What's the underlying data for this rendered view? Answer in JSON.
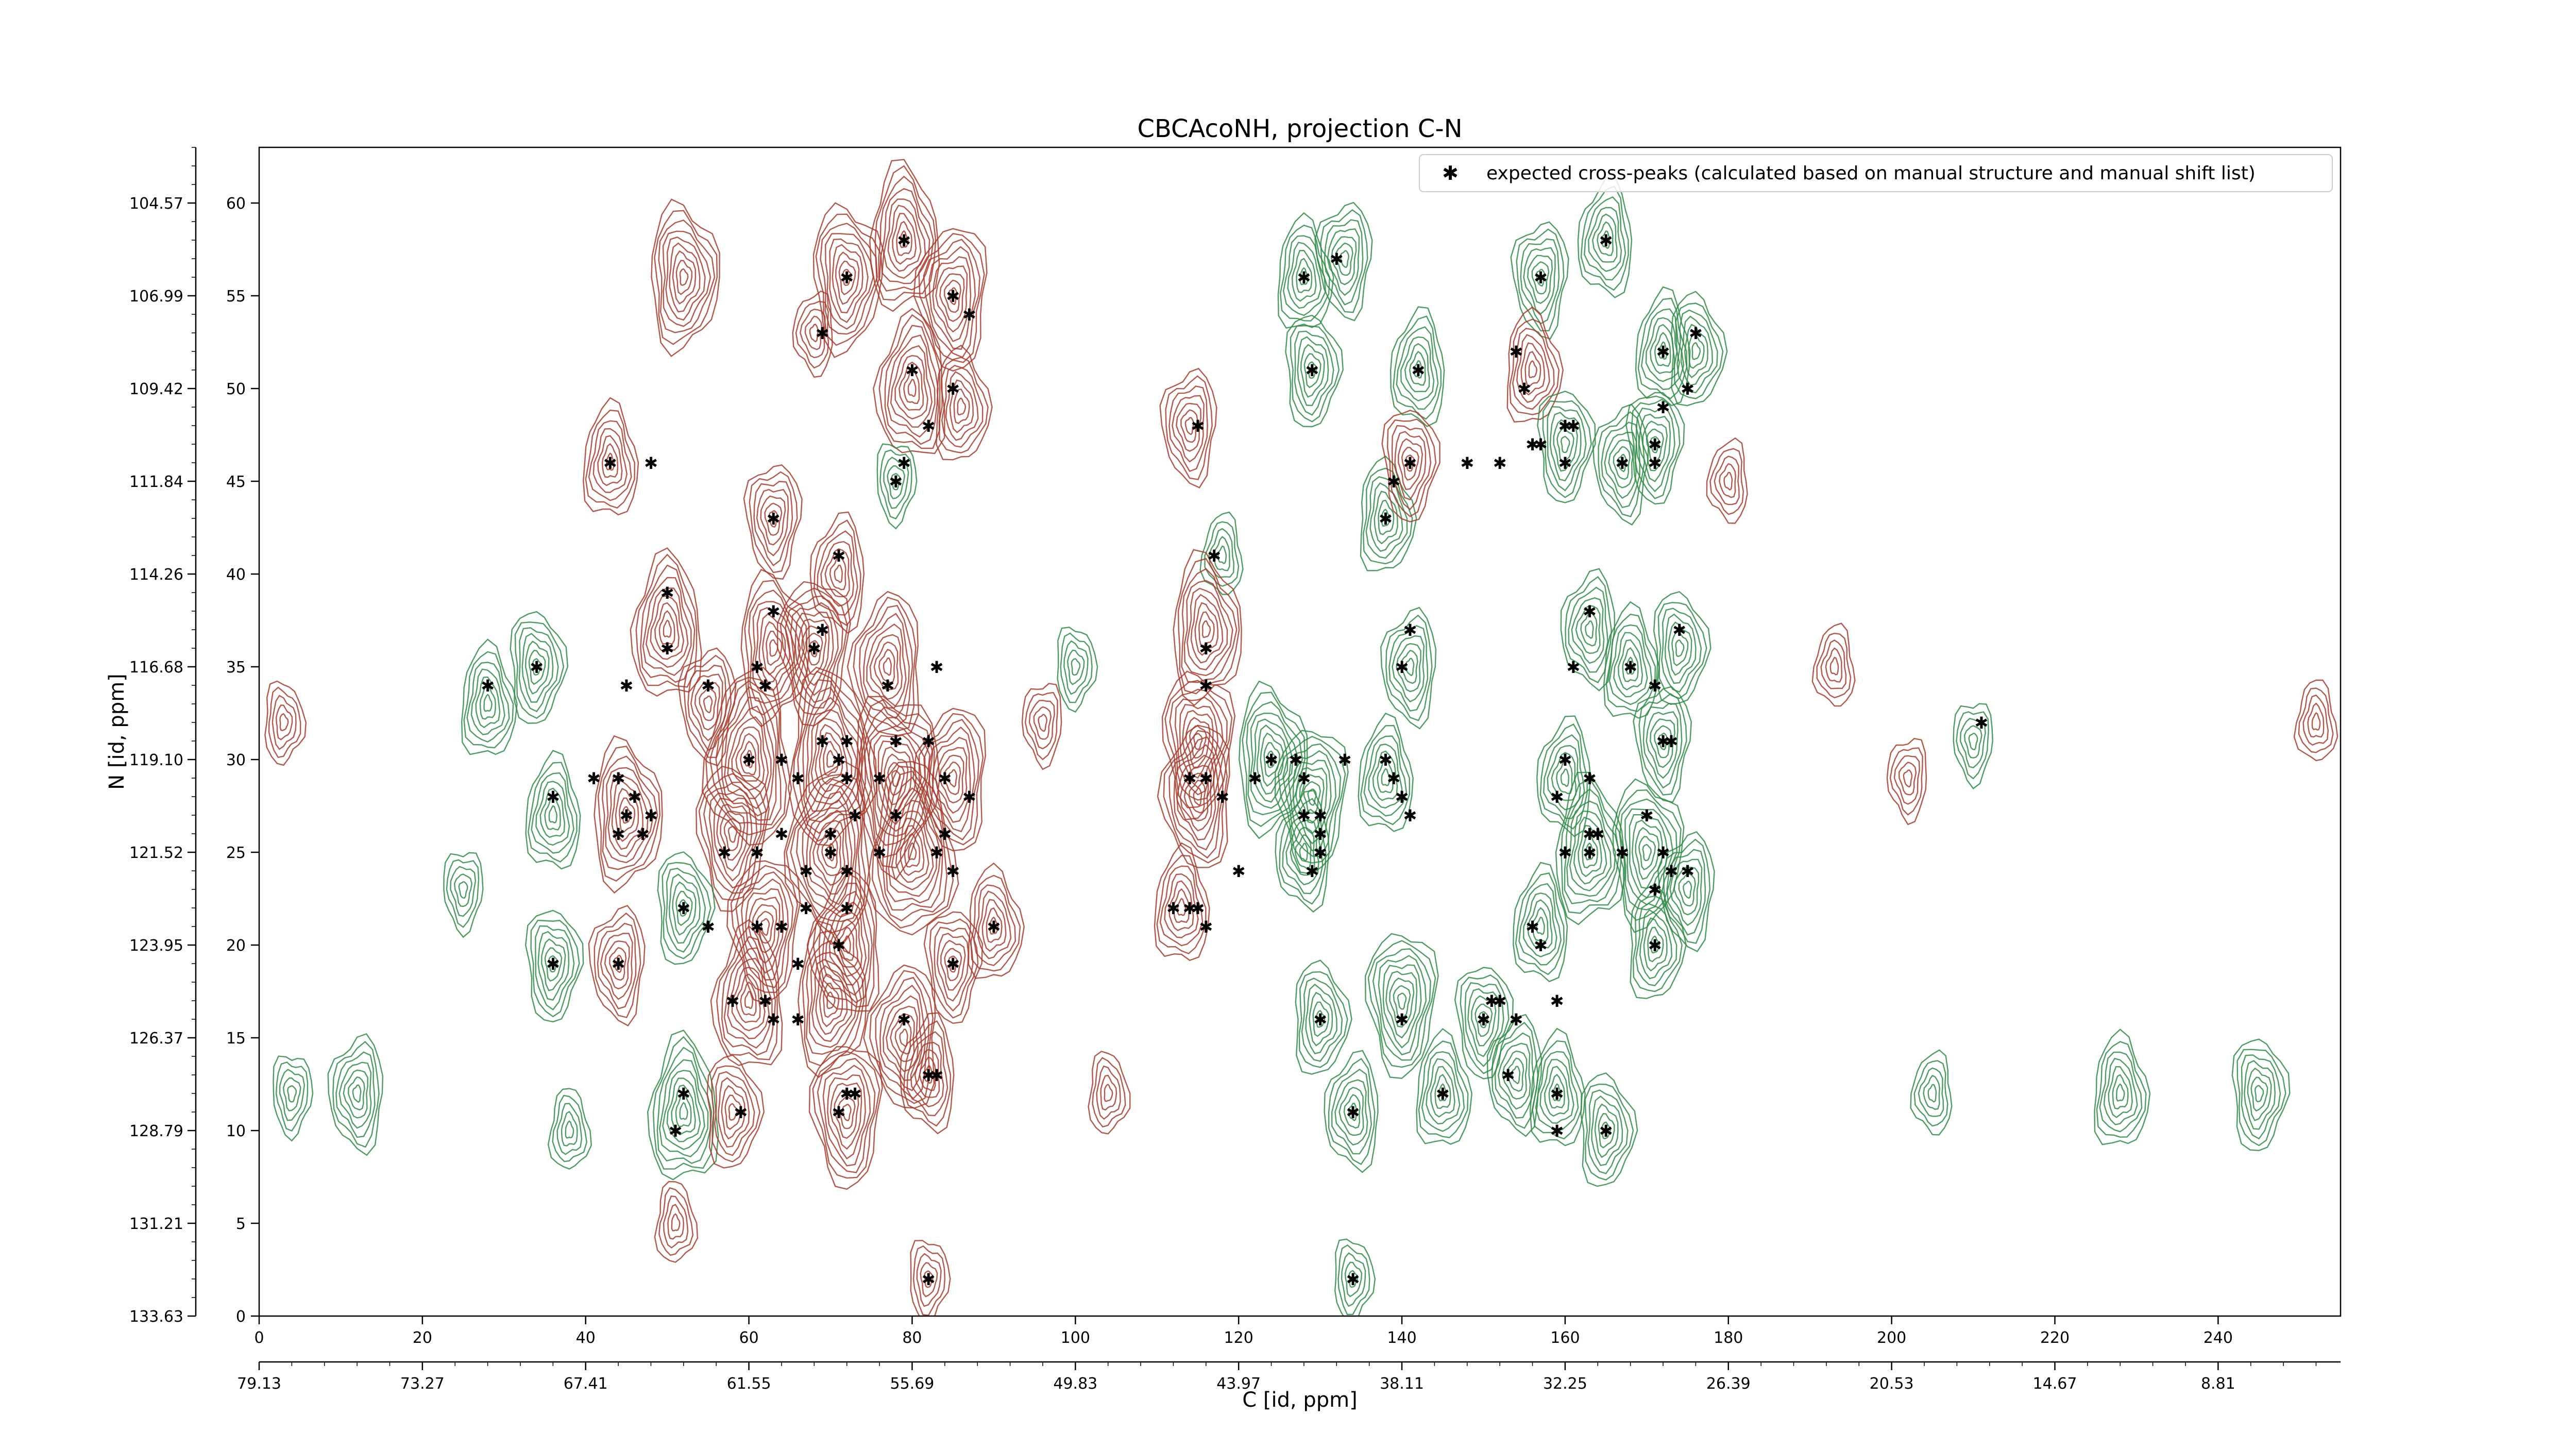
{
  "chart_data": {
    "type": "contour",
    "title": "CBCAcoNH, projection C-N",
    "xlabel": "C [id, ppm]",
    "ylabel": "N [id, ppm]",
    "xlim": [
      0,
      255
    ],
    "ylim": [
      0,
      63
    ],
    "x_ticks": [
      0,
      20,
      40,
      60,
      80,
      100,
      120,
      140,
      160,
      180,
      200,
      220,
      240
    ],
    "x_ticks_labels": [
      "0",
      "20",
      "40",
      "60",
      "80",
      "100",
      "120",
      "140",
      "160",
      "180",
      "200",
      "220",
      "240"
    ],
    "x_ppm_tick_positions": [
      0,
      20,
      40,
      60,
      80,
      100,
      120,
      140,
      160,
      180,
      200,
      220,
      240
    ],
    "x_ppm_ticks_labels": [
      "79.13",
      "73.27",
      "67.41",
      "61.55",
      "55.69",
      "49.83",
      "43.97",
      "38.11",
      "32.25",
      "26.39",
      "20.53",
      "14.67",
      "8.81"
    ],
    "y_ticks": [
      0,
      5,
      10,
      15,
      20,
      25,
      30,
      35,
      40,
      45,
      50,
      55,
      60
    ],
    "y_ticks_labels": [
      "0",
      "5",
      "10",
      "15",
      "20",
      "25",
      "30",
      "35",
      "40",
      "45",
      "50",
      "55",
      "60"
    ],
    "y_ppm_tick_positions": [
      0,
      5,
      10,
      15,
      20,
      25,
      30,
      35,
      40,
      45,
      50,
      55,
      60
    ],
    "y_ppm_ticks_labels": [
      "133.63",
      "131.21",
      "128.79",
      "126.37",
      "123.95",
      "121.52",
      "119.10",
      "116.68",
      "114.26",
      "111.84",
      "109.42",
      "106.99",
      "104.57"
    ],
    "legend": {
      "position": "top-right",
      "label": "expected cross-peaks (calculated based on manual structure and manual shift list)"
    },
    "colors": {
      "positive_contours": "#a83a2c",
      "negative_contours": "#2e8b45",
      "markers": "#1010d8"
    },
    "contour_peaks": [
      {
        "x": 43,
        "y": 46,
        "sign": "pos",
        "size": 3
      },
      {
        "x": 52,
        "y": 56,
        "sign": "pos",
        "size": 4
      },
      {
        "x": 63,
        "y": 43,
        "sign": "pos",
        "size": 3
      },
      {
        "x": 71,
        "y": 40,
        "sign": "pos",
        "size": 3
      },
      {
        "x": 79,
        "y": 58,
        "sign": "pos",
        "size": 4
      },
      {
        "x": 72,
        "y": 56,
        "sign": "pos",
        "size": 4
      },
      {
        "x": 85,
        "y": 55,
        "sign": "pos",
        "size": 4
      },
      {
        "x": 80,
        "y": 50,
        "sign": "pos",
        "size": 4
      },
      {
        "x": 86,
        "y": 49,
        "sign": "pos",
        "size": 3
      },
      {
        "x": 78,
        "y": 45,
        "sign": "neg",
        "size": 2
      },
      {
        "x": 68,
        "y": 53,
        "sign": "pos",
        "size": 2
      },
      {
        "x": 50,
        "y": 37,
        "sign": "pos",
        "size": 4
      },
      {
        "x": 63,
        "y": 36,
        "sign": "pos",
        "size": 4
      },
      {
        "x": 68,
        "y": 36,
        "sign": "pos",
        "size": 4
      },
      {
        "x": 77,
        "y": 35,
        "sign": "pos",
        "size": 4
      },
      {
        "x": 28,
        "y": 33,
        "sign": "neg",
        "size": 3
      },
      {
        "x": 34,
        "y": 35,
        "sign": "neg",
        "size": 3
      },
      {
        "x": 55,
        "y": 33,
        "sign": "pos",
        "size": 3
      },
      {
        "x": 60,
        "y": 30,
        "sign": "pos",
        "size": 5
      },
      {
        "x": 70,
        "y": 30,
        "sign": "pos",
        "size": 5
      },
      {
        "x": 78,
        "y": 29,
        "sign": "pos",
        "size": 5
      },
      {
        "x": 85,
        "y": 29,
        "sign": "pos",
        "size": 4
      },
      {
        "x": 36,
        "y": 27,
        "sign": "neg",
        "size": 3
      },
      {
        "x": 45,
        "y": 27,
        "sign": "pos",
        "size": 4
      },
      {
        "x": 58,
        "y": 26,
        "sign": "pos",
        "size": 4
      },
      {
        "x": 70,
        "y": 25,
        "sign": "pos",
        "size": 5
      },
      {
        "x": 80,
        "y": 25,
        "sign": "pos",
        "size": 5
      },
      {
        "x": 52,
        "y": 22,
        "sign": "neg",
        "size": 3
      },
      {
        "x": 62,
        "y": 21,
        "sign": "pos",
        "size": 4
      },
      {
        "x": 72,
        "y": 20,
        "sign": "pos",
        "size": 4
      },
      {
        "x": 90,
        "y": 21,
        "sign": "pos",
        "size": 3
      },
      {
        "x": 36,
        "y": 19,
        "sign": "neg",
        "size": 3
      },
      {
        "x": 44,
        "y": 19,
        "sign": "pos",
        "size": 3
      },
      {
        "x": 60,
        "y": 17,
        "sign": "pos",
        "size": 4
      },
      {
        "x": 70,
        "y": 17,
        "sign": "pos",
        "size": 4
      },
      {
        "x": 85,
        "y": 19,
        "sign": "pos",
        "size": 3
      },
      {
        "x": 79,
        "y": 15,
        "sign": "pos",
        "size": 4
      },
      {
        "x": 52,
        "y": 11,
        "sign": "neg",
        "size": 4
      },
      {
        "x": 58,
        "y": 11,
        "sign": "pos",
        "size": 3
      },
      {
        "x": 72,
        "y": 11,
        "sign": "pos",
        "size": 4
      },
      {
        "x": 82,
        "y": 13,
        "sign": "pos",
        "size": 3
      },
      {
        "x": 51,
        "y": 5,
        "sign": "pos",
        "size": 2
      },
      {
        "x": 82,
        "y": 2,
        "sign": "pos",
        "size": 2
      },
      {
        "x": 114,
        "y": 48,
        "sign": "pos",
        "size": 3
      },
      {
        "x": 118,
        "y": 41,
        "sign": "neg",
        "size": 2
      },
      {
        "x": 116,
        "y": 37,
        "sign": "pos",
        "size": 4
      },
      {
        "x": 115,
        "y": 31,
        "sign": "pos",
        "size": 4
      },
      {
        "x": 115,
        "y": 28,
        "sign": "pos",
        "size": 4
      },
      {
        "x": 113,
        "y": 22,
        "sign": "pos",
        "size": 3
      },
      {
        "x": 124,
        "y": 30,
        "sign": "neg",
        "size": 4
      },
      {
        "x": 129,
        "y": 28,
        "sign": "neg",
        "size": 4
      },
      {
        "x": 128,
        "y": 25,
        "sign": "neg",
        "size": 3
      },
      {
        "x": 128,
        "y": 56,
        "sign": "neg",
        "size": 3
      },
      {
        "x": 129,
        "y": 51,
        "sign": "neg",
        "size": 3
      },
      {
        "x": 133,
        "y": 57,
        "sign": "neg",
        "size": 3
      },
      {
        "x": 142,
        "y": 51,
        "sign": "neg",
        "size": 3
      },
      {
        "x": 138,
        "y": 43,
        "sign": "neg",
        "size": 3
      },
      {
        "x": 141,
        "y": 46,
        "sign": "pos",
        "size": 3
      },
      {
        "x": 141,
        "y": 35,
        "sign": "neg",
        "size": 3
      },
      {
        "x": 138,
        "y": 29,
        "sign": "neg",
        "size": 3
      },
      {
        "x": 130,
        "y": 16,
        "sign": "neg",
        "size": 3
      },
      {
        "x": 140,
        "y": 17,
        "sign": "neg",
        "size": 4
      },
      {
        "x": 134,
        "y": 11,
        "sign": "neg",
        "size": 3
      },
      {
        "x": 145,
        "y": 12,
        "sign": "neg",
        "size": 3
      },
      {
        "x": 134,
        "y": 2,
        "sign": "neg",
        "size": 2
      },
      {
        "x": 157,
        "y": 56,
        "sign": "neg",
        "size": 3
      },
      {
        "x": 165,
        "y": 58,
        "sign": "neg",
        "size": 3
      },
      {
        "x": 156,
        "y": 51,
        "sign": "pos",
        "size": 3
      },
      {
        "x": 160,
        "y": 47,
        "sign": "neg",
        "size": 3
      },
      {
        "x": 167,
        "y": 46,
        "sign": "neg",
        "size": 3
      },
      {
        "x": 172,
        "y": 52,
        "sign": "neg",
        "size": 3
      },
      {
        "x": 176,
        "y": 52,
        "sign": "neg",
        "size": 3
      },
      {
        "x": 171,
        "y": 47,
        "sign": "neg",
        "size": 3
      },
      {
        "x": 163,
        "y": 37,
        "sign": "neg",
        "size": 3
      },
      {
        "x": 168,
        "y": 35,
        "sign": "neg",
        "size": 3
      },
      {
        "x": 174,
        "y": 36,
        "sign": "neg",
        "size": 3
      },
      {
        "x": 172,
        "y": 31,
        "sign": "neg",
        "size": 3
      },
      {
        "x": 160,
        "y": 29,
        "sign": "neg",
        "size": 3
      },
      {
        "x": 163,
        "y": 25,
        "sign": "neg",
        "size": 4
      },
      {
        "x": 170,
        "y": 25,
        "sign": "neg",
        "size": 4
      },
      {
        "x": 175,
        "y": 23,
        "sign": "neg",
        "size": 3
      },
      {
        "x": 157,
        "y": 21,
        "sign": "neg",
        "size": 3
      },
      {
        "x": 171,
        "y": 20,
        "sign": "neg",
        "size": 3
      },
      {
        "x": 150,
        "y": 16,
        "sign": "neg",
        "size": 3
      },
      {
        "x": 154,
        "y": 13,
        "sign": "neg",
        "size": 3
      },
      {
        "x": 159,
        "y": 12,
        "sign": "neg",
        "size": 3
      },
      {
        "x": 165,
        "y": 10,
        "sign": "neg",
        "size": 3
      },
      {
        "x": 210,
        "y": 31,
        "sign": "neg",
        "size": 2
      },
      {
        "x": 205,
        "y": 12,
        "sign": "neg",
        "size": 2
      },
      {
        "x": 228,
        "y": 12,
        "sign": "neg",
        "size": 3
      },
      {
        "x": 245,
        "y": 12,
        "sign": "neg",
        "size": 3
      },
      {
        "x": 202,
        "y": 29,
        "sign": "pos",
        "size": 2
      },
      {
        "x": 193,
        "y": 35,
        "sign": "pos",
        "size": 2
      },
      {
        "x": 104,
        "y": 12,
        "sign": "pos",
        "size": 2
      },
      {
        "x": 4,
        "y": 12,
        "sign": "neg",
        "size": 2
      },
      {
        "x": 12,
        "y": 12,
        "sign": "neg",
        "size": 3
      },
      {
        "x": 252,
        "y": 32,
        "sign": "pos",
        "size": 2
      },
      {
        "x": 3,
        "y": 32,
        "sign": "pos",
        "size": 2
      },
      {
        "x": 25,
        "y": 23,
        "sign": "neg",
        "size": 2
      },
      {
        "x": 180,
        "y": 45,
        "sign": "pos",
        "size": 2
      },
      {
        "x": 38,
        "y": 10,
        "sign": "neg",
        "size": 2
      },
      {
        "x": 100,
        "y": 35,
        "sign": "neg",
        "size": 2
      },
      {
        "x": 96,
        "y": 32,
        "sign": "pos",
        "size": 2
      }
    ],
    "expected_peaks": [
      [
        43,
        46
      ],
      [
        48,
        46
      ],
      [
        63,
        43
      ],
      [
        71,
        41
      ],
      [
        79,
        58
      ],
      [
        72,
        56
      ],
      [
        85,
        55
      ],
      [
        87,
        54
      ],
      [
        69,
        53
      ],
      [
        80,
        51
      ],
      [
        85,
        50
      ],
      [
        82,
        48
      ],
      [
        78,
        45
      ],
      [
        79,
        46
      ],
      [
        115,
        48
      ],
      [
        117,
        41
      ],
      [
        50,
        39
      ],
      [
        50,
        36
      ],
      [
        45,
        34
      ],
      [
        55,
        34
      ],
      [
        63,
        38
      ],
      [
        61,
        35
      ],
      [
        62,
        34
      ],
      [
        68,
        36
      ],
      [
        69,
        37
      ],
      [
        77,
        34
      ],
      [
        83,
        35
      ],
      [
        28,
        34
      ],
      [
        34,
        35
      ],
      [
        36,
        28
      ],
      [
        44,
        29
      ],
      [
        41,
        29
      ],
      [
        46,
        28
      ],
      [
        48,
        27
      ],
      [
        45,
        27
      ],
      [
        44,
        26
      ],
      [
        47,
        26
      ],
      [
        60,
        30
      ],
      [
        64,
        30
      ],
      [
        66,
        29
      ],
      [
        69,
        31
      ],
      [
        71,
        30
      ],
      [
        72,
        31
      ],
      [
        72,
        29
      ],
      [
        78,
        31
      ],
      [
        76,
        29
      ],
      [
        82,
        31
      ],
      [
        84,
        29
      ],
      [
        87,
        28
      ],
      [
        78,
        27
      ],
      [
        84,
        26
      ],
      [
        83,
        25
      ],
      [
        85,
        24
      ],
      [
        70,
        26
      ],
      [
        73,
        27
      ],
      [
        76,
        25
      ],
      [
        57,
        25
      ],
      [
        61,
        25
      ],
      [
        64,
        26
      ],
      [
        67,
        24
      ],
      [
        70,
        25
      ],
      [
        72,
        24
      ],
      [
        67,
        22
      ],
      [
        72,
        22
      ],
      [
        52,
        22
      ],
      [
        55,
        21
      ],
      [
        61,
        21
      ],
      [
        64,
        21
      ],
      [
        66,
        19
      ],
      [
        71,
        20
      ],
      [
        90,
        21
      ],
      [
        85,
        19
      ],
      [
        36,
        19
      ],
      [
        44,
        19
      ],
      [
        58,
        17
      ],
      [
        62,
        17
      ],
      [
        63,
        16
      ],
      [
        66,
        16
      ],
      [
        79,
        16
      ],
      [
        83,
        13
      ],
      [
        82,
        13
      ],
      [
        52,
        12
      ],
      [
        59,
        11
      ],
      [
        72,
        12
      ],
      [
        71,
        11
      ],
      [
        73,
        12
      ],
      [
        51,
        10
      ],
      [
        82,
        2
      ],
      [
        112,
        22
      ],
      [
        114,
        22
      ],
      [
        115,
        22
      ],
      [
        116,
        21
      ],
      [
        116,
        29
      ],
      [
        114,
        29
      ],
      [
        116,
        34
      ],
      [
        116,
        36
      ],
      [
        120,
        24
      ],
      [
        124,
        30
      ],
      [
        127,
        30
      ],
      [
        128,
        29
      ],
      [
        128,
        27
      ],
      [
        130,
        27
      ],
      [
        130,
        26
      ],
      [
        130,
        25
      ],
      [
        129,
        24
      ],
      [
        133,
        30
      ],
      [
        138,
        30
      ],
      [
        139,
        29
      ],
      [
        140,
        28
      ],
      [
        141,
        27
      ],
      [
        122,
        29
      ],
      [
        118,
        28
      ],
      [
        128,
        56
      ],
      [
        129,
        51
      ],
      [
        132,
        57
      ],
      [
        142,
        51
      ],
      [
        138,
        43
      ],
      [
        139,
        45
      ],
      [
        141,
        46
      ],
      [
        140,
        35
      ],
      [
        141,
        37
      ],
      [
        130,
        16
      ],
      [
        140,
        16
      ],
      [
        134,
        11
      ],
      [
        145,
        12
      ],
      [
        134,
        2
      ],
      [
        157,
        56
      ],
      [
        165,
        58
      ],
      [
        154,
        52
      ],
      [
        155,
        50
      ],
      [
        152,
        46
      ],
      [
        156,
        47
      ],
      [
        157,
        47
      ],
      [
        160,
        46
      ],
      [
        160,
        48
      ],
      [
        161,
        48
      ],
      [
        167,
        46
      ],
      [
        172,
        52
      ],
      [
        176,
        53
      ],
      [
        175,
        50
      ],
      [
        171,
        47
      ],
      [
        171,
        46
      ],
      [
        172,
        49
      ],
      [
        148,
        46
      ],
      [
        163,
        38
      ],
      [
        168,
        35
      ],
      [
        161,
        35
      ],
      [
        174,
        37
      ],
      [
        171,
        34
      ],
      [
        172,
        31
      ],
      [
        173,
        31
      ],
      [
        160,
        30
      ],
      [
        163,
        29
      ],
      [
        159,
        28
      ],
      [
        163,
        26
      ],
      [
        164,
        26
      ],
      [
        160,
        25
      ],
      [
        163,
        25
      ],
      [
        167,
        25
      ],
      [
        170,
        27
      ],
      [
        172,
        25
      ],
      [
        173,
        24
      ],
      [
        175,
        24
      ],
      [
        171,
        23
      ],
      [
        156,
        21
      ],
      [
        157,
        20
      ],
      [
        151,
        17
      ],
      [
        152,
        17
      ],
      [
        159,
        17
      ],
      [
        154,
        16
      ],
      [
        150,
        16
      ],
      [
        171,
        20
      ],
      [
        153,
        13
      ],
      [
        159,
        12
      ],
      [
        159,
        10
      ],
      [
        165,
        10
      ],
      [
        211,
        32
      ]
    ]
  }
}
